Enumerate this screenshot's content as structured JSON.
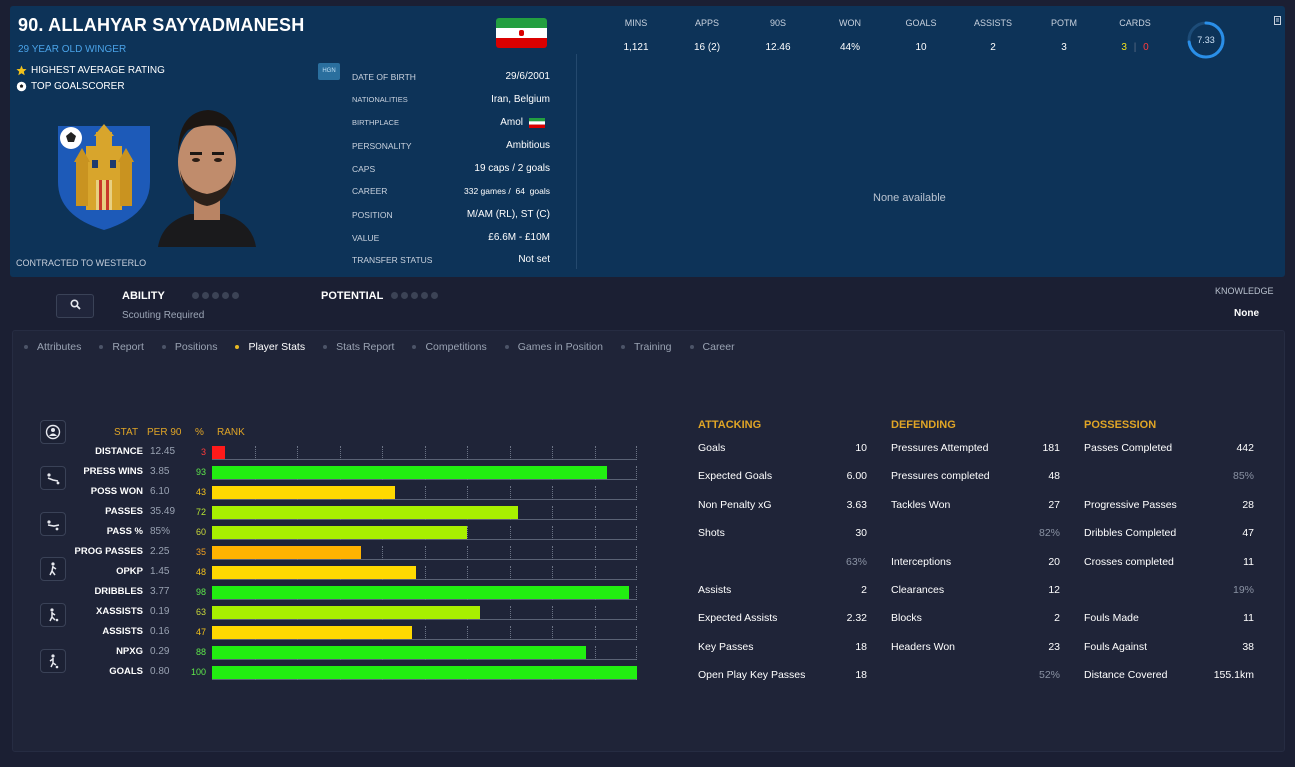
{
  "player": {
    "name": "90. ALLAHYAR SAYYADMANESH",
    "subtitle": "29 YEAR OLD WINGER",
    "awards": [
      {
        "label": "HIGHEST AVERAGE RATING",
        "icon": "star-icon"
      },
      {
        "label": "TOP GOALSCORER",
        "icon": "football-icon"
      }
    ],
    "contract": "CONTRACTED TO WESTERLO",
    "flag_colors": [
      "#239f40",
      "#ffffff",
      "#da0000"
    ],
    "hgn": "HGN"
  },
  "info": {
    "dob_label": "DATE OF BIRTH",
    "dob": "29/6/2001",
    "nat_label": "NATIONALITIES",
    "nat": "Iran, Belgium",
    "birth_label": "BIRTHPLACE",
    "birth": "Amol",
    "pers_label": "PERSONALITY",
    "pers": "Ambitious",
    "caps_label": "CAPS",
    "caps": "19 caps / 2 goals",
    "career_label": "CAREER",
    "career": "332 games /  64  goals",
    "pos_label": "POSITION",
    "pos": "M/AM (RL), ST (C)",
    "value_label": "VALUE",
    "value": "£6.6M - £10M",
    "transfer_label": "TRANSFER STATUS",
    "transfer": "Not set"
  },
  "season": {
    "mins_label": "MINS",
    "mins": "1,121",
    "apps_label": "APPS",
    "apps": "16 (2)",
    "nineties_label": "90S",
    "nineties": "12.46",
    "won_label": "WON",
    "won": "44%",
    "goals_label": "GOALS",
    "goals": "10",
    "assists_label": "ASSISTS",
    "assists": "2",
    "potm_label": "POTM",
    "potm": "3",
    "cards_label": "CARDS",
    "cards_yellow": "3",
    "cards_sep": "|",
    "cards_red": "0",
    "rating": "7.33",
    "rating_fraction": 0.73,
    "none_available": "None available"
  },
  "scouting": {
    "ability_label": "ABILITY",
    "potential_label": "POTENTIAL",
    "scouting_required": "Scouting Required",
    "knowledge_label": "KNOWLEDGE",
    "knowledge_value": "None"
  },
  "tabs": [
    {
      "label": "Attributes",
      "active": false
    },
    {
      "label": "Report",
      "active": false
    },
    {
      "label": "Positions",
      "active": false
    },
    {
      "label": "Player Stats",
      "active": true
    },
    {
      "label": "Stats Report",
      "active": false
    },
    {
      "label": "Competitions",
      "active": false
    },
    {
      "label": "Games in Position",
      "active": false
    },
    {
      "label": "Training",
      "active": false
    },
    {
      "label": "Career",
      "active": false
    }
  ],
  "stats_table": {
    "col_stat": "STAT",
    "col_per90": "PER 90",
    "col_pct": "%",
    "col_rank": "RANK",
    "colors": {
      "red": "#ff1a1a",
      "orange": "#ffb300",
      "yellow": "#ffd900",
      "lime": "#a8f000",
      "green": "#22ee11"
    },
    "rows": [
      {
        "stat": "DISTANCE",
        "per90": "12.45",
        "pct": "3",
        "rank": 3,
        "color": "#ff1a1a",
        "pct_color": "#ff3b3b"
      },
      {
        "stat": "PRESS WINS",
        "per90": "3.85",
        "pct": "93",
        "rank": 93,
        "color": "#22ee11",
        "pct_color": "#5ee84a"
      },
      {
        "stat": "POSS WON",
        "per90": "6.10",
        "pct": "43",
        "rank": 43,
        "color": "#ffd900",
        "pct_color": "#f2c21c"
      },
      {
        "stat": "PASSES",
        "per90": "35.49",
        "pct": "72",
        "rank": 72,
        "color": "#a8f000",
        "pct_color": "#b7e632"
      },
      {
        "stat": "PASS %",
        "per90": "85%",
        "pct": "60",
        "rank": 60,
        "color": "#a8f000",
        "pct_color": "#c8d83a"
      },
      {
        "stat": "PROG PASSES",
        "per90": "2.25",
        "pct": "35",
        "rank": 35,
        "color": "#ffb300",
        "pct_color": "#f0a020"
      },
      {
        "stat": "OPKP",
        "per90": "1.45",
        "pct": "48",
        "rank": 48,
        "color": "#ffd900",
        "pct_color": "#f2c21c"
      },
      {
        "stat": "DRIBBLES",
        "per90": "3.77",
        "pct": "98",
        "rank": 98,
        "color": "#22ee11",
        "pct_color": "#5ee84a"
      },
      {
        "stat": "XASSISTS",
        "per90": "0.19",
        "pct": "63",
        "rank": 63,
        "color": "#a8f000",
        "pct_color": "#c8d83a"
      },
      {
        "stat": "ASSISTS",
        "per90": "0.16",
        "pct": "47",
        "rank": 47,
        "color": "#ffd900",
        "pct_color": "#f2c21c"
      },
      {
        "stat": "NPXG",
        "per90": "0.29",
        "pct": "88",
        "rank": 88,
        "color": "#22ee11",
        "pct_color": "#5ee84a"
      },
      {
        "stat": "GOALS",
        "per90": "0.80",
        "pct": "100",
        "rank": 100,
        "color": "#22ee11",
        "pct_color": "#5ee84a"
      }
    ]
  },
  "attacking": {
    "title": "ATTACKING",
    "rows": [
      {
        "label": "Goals",
        "value": "10"
      },
      {
        "label": "Expected Goals",
        "value": "6.00"
      },
      {
        "label": "Non Penalty xG",
        "value": "3.63"
      },
      {
        "label": "Shots",
        "value": "30"
      },
      {
        "label": "",
        "value": "63%"
      },
      {
        "label": "Assists",
        "value": "2"
      },
      {
        "label": "Expected Assists",
        "value": "2.32"
      },
      {
        "label": "Key Passes",
        "value": "18"
      },
      {
        "label": "Open Play Key Passes",
        "value": "18"
      }
    ]
  },
  "defending": {
    "title": "DEFENDING",
    "rows": [
      {
        "label": "Pressures Attempted",
        "value": "181"
      },
      {
        "label": "Pressures completed",
        "value": "48"
      },
      {
        "label": "Tackles Won",
        "value": "27"
      },
      {
        "label": "",
        "value": "82%"
      },
      {
        "label": "Interceptions",
        "value": "20"
      },
      {
        "label": "Clearances",
        "value": "12"
      },
      {
        "label": "Blocks",
        "value": "2"
      },
      {
        "label": "Headers Won",
        "value": "23"
      },
      {
        "label": "",
        "value": "52%"
      }
    ]
  },
  "possession": {
    "title": "POSSESSION",
    "rows": [
      {
        "label": "Passes Completed",
        "value": "442"
      },
      {
        "label": "",
        "value": "85%"
      },
      {
        "label": "Progressive Passes",
        "value": "28"
      },
      {
        "label": "Dribbles Completed",
        "value": "47"
      },
      {
        "label": "Crosses completed",
        "value": "11"
      },
      {
        "label": "",
        "value": "19%"
      },
      {
        "label": "Fouls Made",
        "value": "11"
      },
      {
        "label": "Fouls Against",
        "value": "38"
      },
      {
        "label": "Distance Covered",
        "value": "155.1km"
      }
    ]
  }
}
